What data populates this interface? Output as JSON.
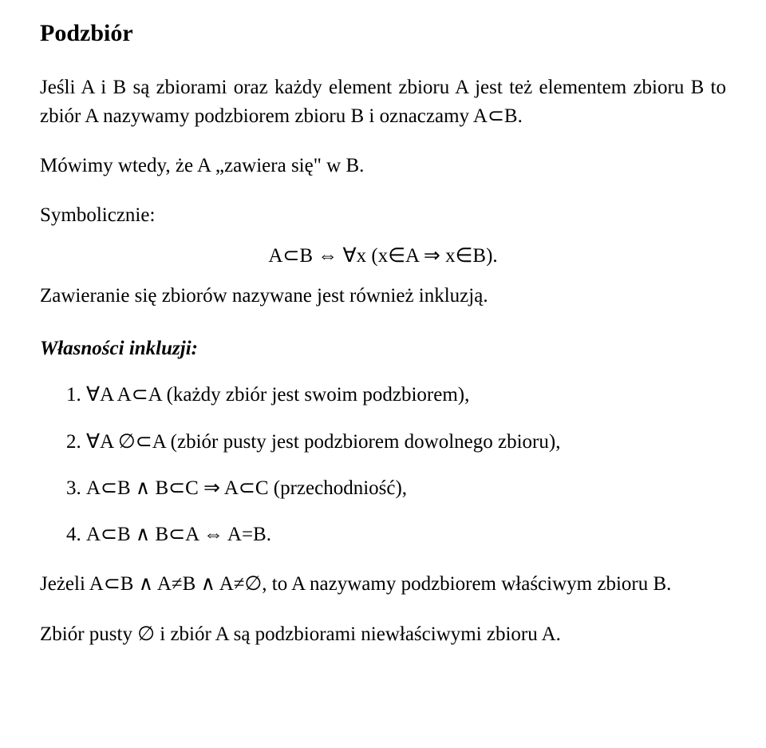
{
  "title": "Podzbiór",
  "para1": "Jeśli A i B są zbiorami oraz każdy element zbioru A jest też elementem zbioru B to zbiór A nazywamy podzbiorem zbioru B i oznaczamy A⊂B.",
  "para2": "Mówimy wtedy, że A „zawiera się\" w B.",
  "symLabel": "Symbolicznie:",
  "formula": "A⊂B ⇔ ∀x (x∈A ⇒ x∈B).",
  "para3": "Zawieranie się zbiorów nazywane jest również inkluzją.",
  "propHeading": "Własności inkluzji:",
  "props": [
    "∀A A⊂A (każdy zbiór jest swoim podzbiorem),",
    "∀A ∅⊂A (zbiór pusty jest podzbiorem dowolnego zbioru),",
    "A⊂B ∧ B⊂C ⇒ A⊂C (przechodniość),",
    "A⊂B ∧ B⊂A ⇔ A=B."
  ],
  "para4": "Jeżeli A⊂B ∧ A≠B ∧ A≠∅, to A nazywamy podzbiorem właściwym zbioru B.",
  "para5": "Zbiór pusty ∅ i zbiór A są podzbiorami niewłaściwymi zbioru A."
}
